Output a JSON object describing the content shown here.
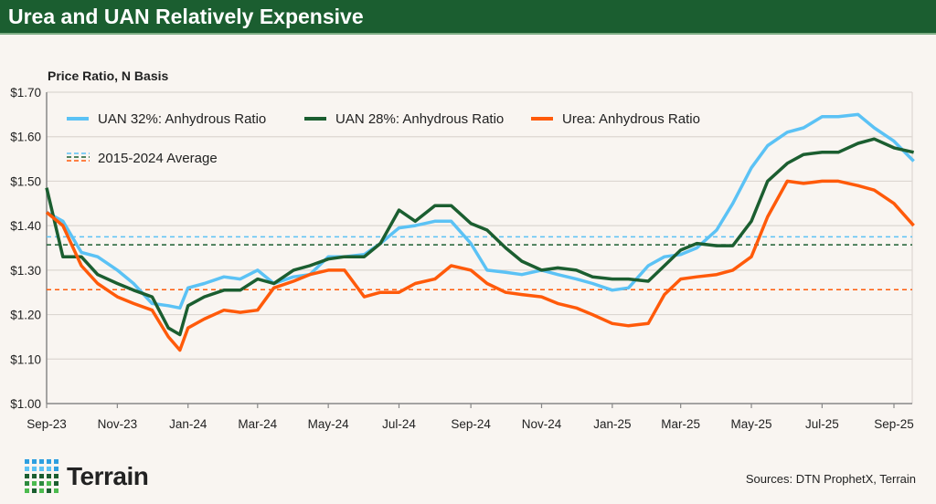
{
  "header": {
    "title": "Urea and UAN Relatively Expensive"
  },
  "footer": {
    "sources": "Sources: DTN ProphetX, Terrain",
    "logo_text": "Terrain"
  },
  "colors": {
    "uan32": "#5bc2f5",
    "uan28": "#1b5e30",
    "urea": "#ff5a0a",
    "title_bg": "#1b5e30"
  },
  "chart_data": {
    "type": "line",
    "title": "",
    "ylabel": "Price Ratio, N Basis",
    "ylim": [
      1.0,
      1.7
    ],
    "yticks": [
      1.0,
      1.1,
      1.2,
      1.3,
      1.4,
      1.5,
      1.6,
      1.7
    ],
    "ytick_labels": [
      "$1.00",
      "$1.10",
      "$1.20",
      "$1.30",
      "$1.40",
      "$1.50",
      "$1.60",
      "$1.70"
    ],
    "xlim": [
      "2023-09-01",
      "2025-09-20"
    ],
    "xticks": [
      "2023-09-01",
      "2023-11-01",
      "2024-01-01",
      "2024-03-01",
      "2024-05-01",
      "2024-07-01",
      "2024-09-01",
      "2024-11-01",
      "2025-01-01",
      "2025-03-01",
      "2025-05-01",
      "2025-07-01",
      "2025-09-01"
    ],
    "xtick_labels": [
      "Sep-23",
      "Nov-23",
      "Jan-24",
      "Mar-24",
      "May-24",
      "Jul-24",
      "Sep-24",
      "Nov-24",
      "Jan-25",
      "Mar-25",
      "May-25",
      "Jul-25",
      "Sep-25"
    ],
    "grid": "horizontal",
    "legend_placement": "top-left",
    "x": [
      "2023-09-01",
      "2023-09-15",
      "2023-10-01",
      "2023-10-15",
      "2023-11-01",
      "2023-11-15",
      "2023-12-01",
      "2023-12-15",
      "2023-12-25",
      "2024-01-01",
      "2024-01-15",
      "2024-02-01",
      "2024-02-15",
      "2024-03-01",
      "2024-03-15",
      "2024-04-01",
      "2024-04-15",
      "2024-05-01",
      "2024-05-15",
      "2024-06-01",
      "2024-06-15",
      "2024-07-01",
      "2024-07-15",
      "2024-08-01",
      "2024-08-15",
      "2024-09-01",
      "2024-09-15",
      "2024-10-01",
      "2024-10-15",
      "2024-11-01",
      "2024-11-15",
      "2024-12-01",
      "2024-12-15",
      "2025-01-01",
      "2025-01-15",
      "2025-02-01",
      "2025-02-15",
      "2025-03-01",
      "2025-03-15",
      "2025-04-01",
      "2025-04-15",
      "2025-05-01",
      "2025-05-15",
      "2025-06-01",
      "2025-06-15",
      "2025-07-01",
      "2025-07-15",
      "2025-08-01",
      "2025-08-15",
      "2025-09-01",
      "2025-09-18"
    ],
    "series": [
      {
        "name": "UAN 32%: Anhydrous Ratio",
        "color": "#5bc2f5",
        "values": [
          1.43,
          1.41,
          1.34,
          1.33,
          1.3,
          1.27,
          1.225,
          1.22,
          1.215,
          1.26,
          1.27,
          1.285,
          1.28,
          1.3,
          1.27,
          1.285,
          1.29,
          1.33,
          1.33,
          1.335,
          1.36,
          1.395,
          1.4,
          1.41,
          1.41,
          1.36,
          1.3,
          1.295,
          1.29,
          1.3,
          1.29,
          1.28,
          1.27,
          1.255,
          1.26,
          1.31,
          1.33,
          1.335,
          1.35,
          1.39,
          1.45,
          1.53,
          1.58,
          1.61,
          1.62,
          1.645,
          1.645,
          1.65,
          1.62,
          1.59,
          1.545
        ]
      },
      {
        "name": "UAN 28%: Anhydrous Ratio",
        "color": "#1b5e30",
        "values": [
          1.485,
          1.33,
          1.33,
          1.29,
          1.27,
          1.255,
          1.24,
          1.17,
          1.155,
          1.22,
          1.24,
          1.255,
          1.255,
          1.28,
          1.27,
          1.3,
          1.31,
          1.325,
          1.33,
          1.33,
          1.36,
          1.435,
          1.41,
          1.445,
          1.445,
          1.405,
          1.39,
          1.35,
          1.32,
          1.3,
          1.305,
          1.3,
          1.285,
          1.28,
          1.28,
          1.275,
          1.31,
          1.345,
          1.36,
          1.355,
          1.355,
          1.41,
          1.5,
          1.54,
          1.56,
          1.565,
          1.565,
          1.585,
          1.595,
          1.575,
          1.565
        ]
      },
      {
        "name": "Urea: Anhydrous Ratio",
        "color": "#ff5a0a",
        "values": [
          1.43,
          1.4,
          1.31,
          1.27,
          1.24,
          1.225,
          1.21,
          1.15,
          1.12,
          1.17,
          1.19,
          1.21,
          1.205,
          1.21,
          1.26,
          1.275,
          1.29,
          1.3,
          1.3,
          1.24,
          1.25,
          1.25,
          1.27,
          1.28,
          1.31,
          1.3,
          1.27,
          1.25,
          1.245,
          1.24,
          1.225,
          1.215,
          1.2,
          1.18,
          1.175,
          1.18,
          1.245,
          1.28,
          1.285,
          1.29,
          1.3,
          1.33,
          1.42,
          1.5,
          1.495,
          1.5,
          1.5,
          1.49,
          1.48,
          1.45,
          1.4
        ]
      }
    ],
    "averages": {
      "label": "2015-2024 Average",
      "values": [
        {
          "series": "UAN 32%",
          "value": 1.375,
          "color": "#5bc2f5"
        },
        {
          "series": "UAN 28%",
          "value": 1.357,
          "color": "#1b5e30"
        },
        {
          "series": "Urea",
          "value": 1.256,
          "color": "#ff5a0a"
        }
      ]
    }
  }
}
